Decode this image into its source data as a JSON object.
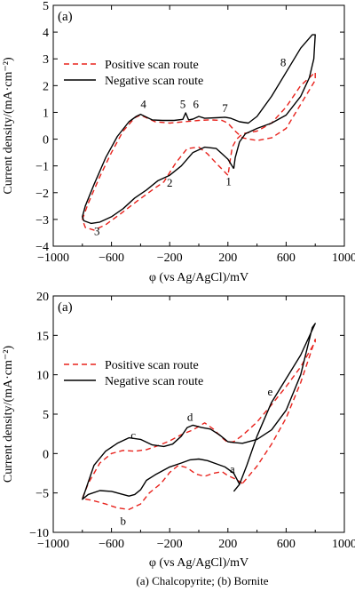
{
  "chart_data": [
    {
      "type": "line",
      "panel_label": "(a)",
      "xlabel": "φ (vs Ag/AgCl)/mV",
      "ylabel": "Current density/(mA·cm⁻²)",
      "xlim": [
        -1000,
        1000
      ],
      "ylim": [
        -4,
        5
      ],
      "xticks": [
        -1000,
        -600,
        -200,
        200,
        600,
        1000
      ],
      "xtick_labels": [
        "−1000",
        "−600",
        "−200",
        "200",
        "600",
        "1000"
      ],
      "yticks": [
        -4,
        -3,
        -2,
        -1,
        0,
        1,
        2,
        3,
        4,
        5
      ],
      "ytick_labels": [
        "−4",
        "−3",
        "−2",
        "−1",
        "0",
        "1",
        "2",
        "3",
        "4",
        "5"
      ],
      "legend_position": "upper-left",
      "series": [
        {
          "name": "Positive scan route",
          "color": "#e8221c",
          "dash": "dashed",
          "x": [
            200,
            120,
            60,
            0,
            -80,
            -160,
            -240,
            -320,
            -420,
            -540,
            -640,
            -720,
            -780,
            -800,
            -760,
            -680,
            -600,
            -520,
            -440,
            -400,
            -360,
            -300,
            -200,
            -100,
            0,
            80,
            160,
            200,
            240,
            300,
            400,
            500,
            600,
            700,
            800,
            800,
            700,
            600,
            500,
            400,
            300,
            260,
            230,
            215,
            205,
            200
          ],
          "y": [
            -1.35,
            -0.9,
            -0.55,
            -0.3,
            -0.35,
            -0.9,
            -1.6,
            -1.9,
            -2.3,
            -2.8,
            -3.2,
            -3.4,
            -3.3,
            -3.0,
            -2.4,
            -1.4,
            -0.5,
            0.3,
            0.8,
            0.9,
            0.8,
            0.65,
            0.6,
            0.65,
            0.7,
            0.72,
            0.7,
            0.6,
            0.35,
            0.05,
            -0.05,
            0.05,
            0.4,
            1.3,
            2.2,
            2.5,
            2.0,
            1.2,
            0.6,
            0.3,
            0.2,
            0.0,
            -0.3,
            -0.8,
            -1.2,
            -1.35
          ]
        },
        {
          "name": "Negative scan route",
          "color": "#000000",
          "dash": "solid",
          "x": [
            240,
            200,
            120,
            40,
            -40,
            -120,
            -200,
            -280,
            -360,
            -440,
            -520,
            -600,
            -680,
            -740,
            -790,
            -800,
            -780,
            -720,
            -640,
            -560,
            -480,
            -430,
            -400,
            -370,
            -320,
            -250,
            -170,
            -110,
            -90,
            -70,
            -40,
            0,
            40,
            120,
            180,
            220,
            280,
            340,
            400,
            500,
            600,
            700,
            780,
            800,
            790,
            760,
            700,
            600,
            500,
            400,
            320,
            280,
            250,
            240
          ],
          "y": [
            -1.1,
            -0.75,
            -0.35,
            -0.3,
            -0.5,
            -1.0,
            -1.35,
            -1.55,
            -1.9,
            -2.2,
            -2.6,
            -2.9,
            -3.1,
            -3.15,
            -3.05,
            -2.9,
            -2.5,
            -1.7,
            -0.7,
            0.1,
            0.65,
            0.85,
            0.93,
            0.85,
            0.72,
            0.7,
            0.7,
            0.74,
            0.98,
            0.72,
            0.75,
            0.85,
            0.78,
            0.8,
            0.82,
            0.78,
            0.65,
            0.6,
            0.85,
            1.6,
            2.5,
            3.4,
            3.9,
            3.9,
            3.0,
            2.3,
            1.6,
            0.9,
            0.6,
            0.4,
            0.2,
            -0.1,
            -0.7,
            -1.1
          ]
        }
      ],
      "annotations": [
        {
          "text": "1",
          "x": 205,
          "y": -1.6
        },
        {
          "text": "2",
          "x": -200,
          "y": -1.65
        },
        {
          "text": "3",
          "x": -700,
          "y": -3.45
        },
        {
          "text": "4",
          "x": -380,
          "y": 1.3
        },
        {
          "text": "5",
          "x": -110,
          "y": 1.3
        },
        {
          "text": "6",
          "x": -20,
          "y": 1.3
        },
        {
          "text": "7",
          "x": 180,
          "y": 1.15
        },
        {
          "text": "8",
          "x": 580,
          "y": 2.85
        }
      ]
    },
    {
      "type": "line",
      "panel_label": "(a)",
      "xlabel": "φ (vs Ag/AgCl)/mV",
      "ylabel": "Current density/(mA·cm⁻²)",
      "xlim": [
        -1000,
        1000
      ],
      "ylim": [
        -10,
        20
      ],
      "xticks": [
        -1000,
        -600,
        -200,
        200,
        600,
        1000
      ],
      "xtick_labels": [
        "−1000",
        "−600",
        "−200",
        "200",
        "600",
        "1000"
      ],
      "yticks": [
        -10,
        -5,
        0,
        5,
        10,
        15,
        20
      ],
      "ytick_labels": [
        "−10",
        "−5",
        "0",
        "5",
        "10",
        "15",
        "20"
      ],
      "legend_position": "upper-left",
      "series": [
        {
          "name": "Positive scan route",
          "color": "#e8221c",
          "dash": "dashed",
          "x": [
            300,
            260,
            200,
            160,
            100,
            40,
            -20,
            -80,
            -140,
            -200,
            -260,
            -340,
            -400,
            -480,
            -560,
            -640,
            -720,
            -800,
            -760,
            -680,
            -600,
            -520,
            -440,
            -360,
            -280,
            -200,
            -120,
            -40,
            40,
            100,
            160,
            200,
            240,
            300,
            400,
            500,
            600,
            700,
            800,
            800,
            700,
            600,
            500,
            400,
            300
          ],
          "y": [
            -3.8,
            -3.3,
            -2.8,
            -2.3,
            -2.5,
            -2.9,
            -2.6,
            -1.8,
            -1.5,
            -2.4,
            -3.8,
            -5.0,
            -6.4,
            -7.1,
            -6.9,
            -6.4,
            -6.0,
            -5.7,
            -3.8,
            -1.2,
            0.0,
            0.4,
            0.3,
            0.5,
            1.0,
            1.6,
            2.4,
            3.0,
            3.9,
            3.1,
            2.0,
            1.4,
            1.5,
            2.3,
            4.0,
            6.2,
            8.5,
            11.0,
            14.2,
            14.5,
            9.0,
            4.5,
            1.2,
            -1.6,
            -3.8
          ]
        },
        {
          "name": "Negative scan route",
          "color": "#000000",
          "dash": "solid",
          "x": [
            240,
            280,
            330,
            400,
            500,
            600,
            700,
            800,
            780,
            700,
            600,
            500,
            400,
            300,
            240,
            200,
            140,
            80,
            20,
            -40,
            -80,
            -120,
            -180,
            -240,
            -320,
            -400,
            -480,
            -560,
            -640,
            -720,
            -800,
            -760,
            -680,
            -600,
            -520,
            -480,
            -440,
            -400,
            -360,
            -300,
            -200,
            -120,
            -60,
            0,
            60,
            120,
            180,
            240,
            280
          ],
          "y": [
            -4.8,
            -3.9,
            -1.5,
            2.2,
            6.5,
            9.5,
            12.5,
            16.5,
            16.0,
            10.0,
            5.5,
            3.0,
            1.8,
            1.3,
            1.4,
            1.5,
            2.4,
            3.1,
            3.3,
            3.6,
            3.3,
            2.2,
            1.2,
            0.9,
            1.1,
            1.8,
            2.0,
            1.3,
            0.3,
            -1.5,
            -5.8,
            -5.2,
            -4.7,
            -4.8,
            -5.2,
            -5.4,
            -5.2,
            -4.6,
            -3.4,
            -2.7,
            -1.7,
            -1.2,
            -0.8,
            -0.7,
            -0.9,
            -1.3,
            -1.7,
            -2.5,
            -3.9
          ]
        }
      ],
      "annotations": [
        {
          "text": "a",
          "x": 230,
          "y": -2.0
        },
        {
          "text": "b",
          "x": -520,
          "y": -8.6
        },
        {
          "text": "c",
          "x": -450,
          "y": 2.3
        },
        {
          "text": "d",
          "x": -60,
          "y": 4.6
        },
        {
          "text": "e",
          "x": 490,
          "y": 7.8
        }
      ]
    }
  ],
  "figure_caption": "(a) Chalcopyrite; (b) Bornite"
}
